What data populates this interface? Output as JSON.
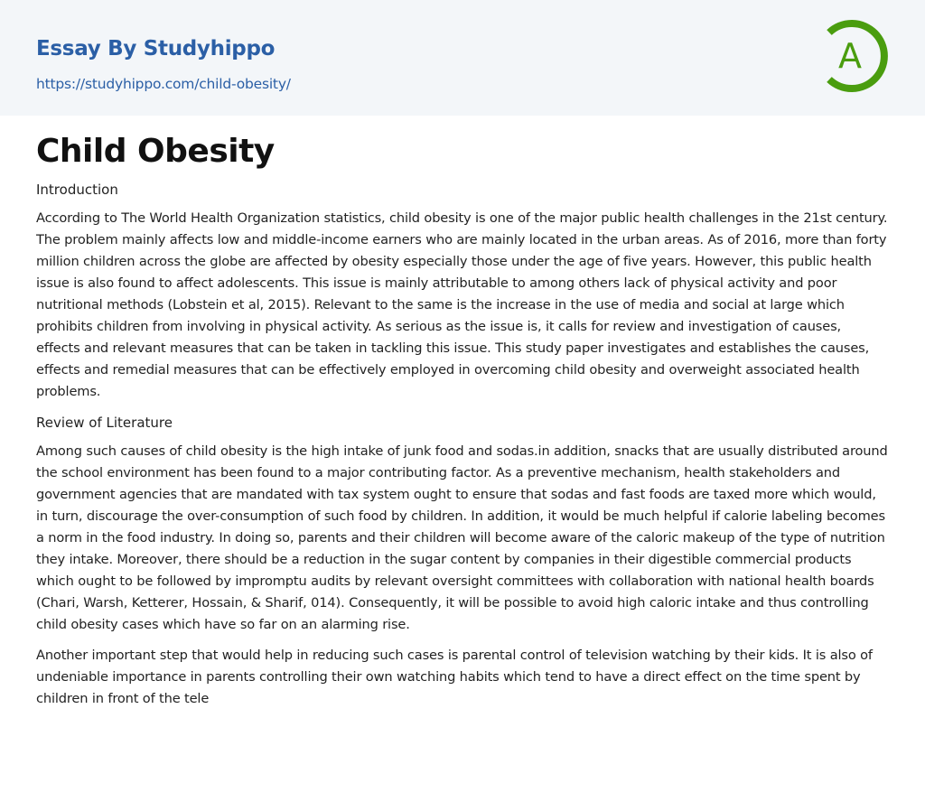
{
  "header": {
    "brand": "Essay By Studyhippo",
    "url": "https://studyhippo.com/child-obesity/",
    "logo_letter": "A",
    "logo_color": "#4a9d0f",
    "brand_color": "#2b5fa6"
  },
  "article": {
    "title": "Child Obesity",
    "sections": [
      {
        "heading": "Introduction"
      },
      {
        "heading": "Review of Literature"
      }
    ],
    "paragraphs": [
      "According to The World Health Organization statistics, child obesity is one of the major public health challenges in the 21st century. The problem mainly affects low and middle-income earners who are mainly located in the urban areas. As of 2016, more than forty million children across the globe are affected by obesity especially those under the age of five years. However, this public health issue is also found to affect adolescents. This issue is mainly attributable to among others lack of physical activity and poor nutritional methods (Lobstein et al, 2015). Relevant to the same is the increase in the use of media and social at large which prohibits children from involving in physical activity. As serious as the issue is, it calls for review and investigation of causes, effects and relevant measures that can be taken in tackling this issue. This study paper investigates and establishes the causes, effects and remedial measures that can be effectively employed in overcoming child obesity and overweight associated health problems.",
      "Among such causes of child obesity is the high intake of junk food and sodas.in addition, snacks that are usually distributed around the school environment has been found to a major contributing factor. As a preventive mechanism, health stakeholders and government agencies that are mandated with tax system ought to ensure that sodas and fast foods are taxed more which would, in turn, discourage the over-consumption of such food by children. In addition, it would be much helpful if calorie labeling becomes a norm in the food industry. In doing so, parents and their children will become aware of the caloric makeup of the type of nutrition they intake. Moreover, there should be a reduction in the sugar content by companies in their digestible commercial products which ought to be followed by impromptu audits by relevant oversight committees with collaboration with national health boards (Chari, Warsh, Ketterer, Hossain, & Sharif, 014). Consequently, it will be possible to avoid high caloric intake and thus controlling child obesity cases which have so far on an alarming rise.",
      "Another important step that would help in reducing such cases is parental control of television watching by their kids. It is also of undeniable importance in parents controlling their own watching habits which tend to have a direct effect on the time spent by children in front of the tele"
    ]
  }
}
